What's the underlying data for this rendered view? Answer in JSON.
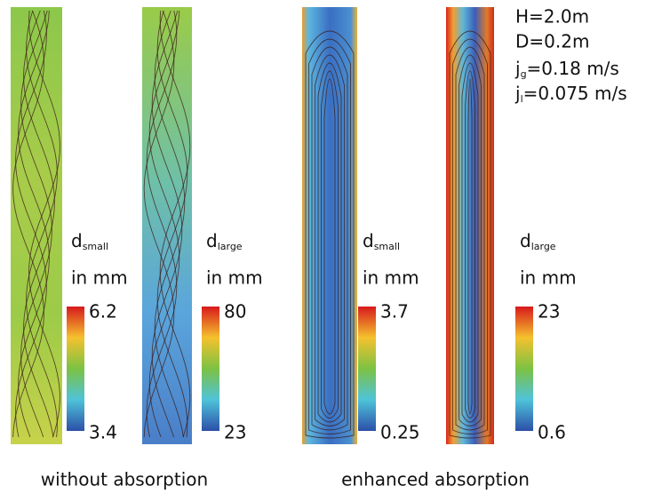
{
  "parameters": {
    "lines": [
      "H=2.0m",
      "D=0.2m"
    ],
    "fluxes": [
      {
        "base": "j",
        "sub": "g",
        "value": "=0.18  m/s"
      },
      {
        "base": "j",
        "sub": "l",
        "value": "=0.075 m/s"
      }
    ]
  },
  "panels": [
    {
      "symbol": "d",
      "sub": "small",
      "unit": "in mm",
      "max": 6.2,
      "min": 3.4
    },
    {
      "symbol": "d",
      "sub": "large",
      "unit": "in mm",
      "max": 80,
      "min": 23
    },
    {
      "symbol": "d",
      "sub": "small",
      "unit": "in mm",
      "max": 3.7,
      "min": 0.25
    },
    {
      "symbol": "d",
      "sub": "large",
      "unit": "in mm",
      "max": 23,
      "min": 0.6
    }
  ],
  "groups": [
    "without absorption",
    "enhanced absorption"
  ]
}
